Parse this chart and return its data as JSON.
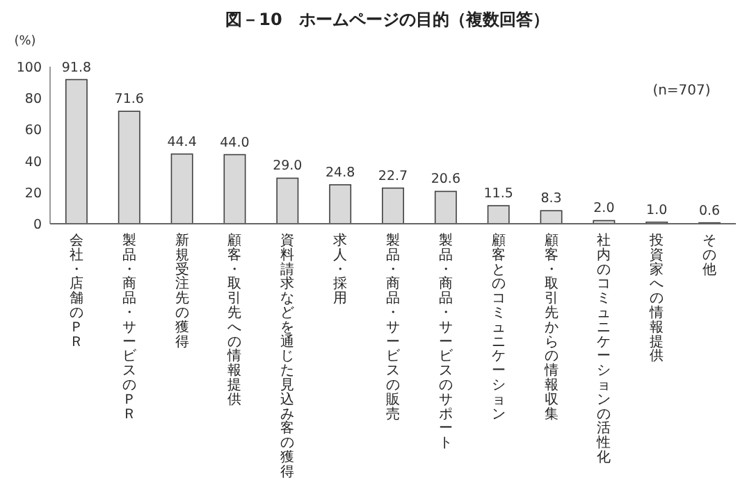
{
  "chart_data": {
    "type": "bar",
    "title": "図－10　ホームページの目的（複数回答）",
    "ylabel": "(%)",
    "annotations": [
      "(n=707)"
    ],
    "categories": [
      "会社・店舗のＰＲ",
      "製品・商品・サービスのＰＲ",
      "新規受注先の獲得",
      "顧客・取引先への情報提供",
      "資料請求などを通じた見込み客の獲得",
      "求人・採用",
      "製品・商品・サービスの販売",
      "製品・商品・サービスのサポート",
      "顧客とのコミュニケーション",
      "顧客・取引先からの情報収集",
      "社内のコミュニケーションの活性化",
      "投資家への情報提供",
      "その他"
    ],
    "values": [
      91.8,
      71.6,
      44.4,
      44.0,
      29.0,
      24.8,
      22.7,
      20.6,
      11.5,
      8.3,
      2.0,
      1.0,
      0.6
    ],
    "value_labels": [
      "91.8",
      "71.6",
      "44.4",
      "44.0",
      "29.0",
      "24.8",
      "22.7",
      "20.6",
      "11.5",
      "8.3",
      "2.0",
      "1.0",
      "0.6"
    ],
    "color": "#d9d9d9",
    "ylim": [
      0,
      100
    ],
    "yticks": [
      0,
      20,
      40,
      60,
      80,
      100
    ],
    "grid": false
  }
}
